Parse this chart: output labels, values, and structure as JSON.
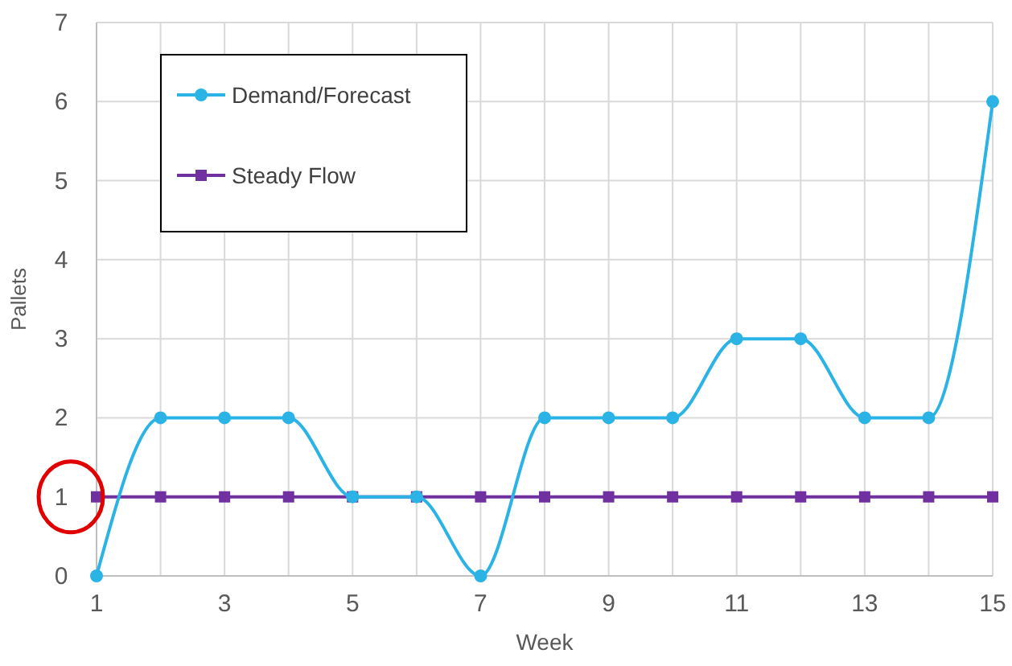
{
  "chart_data": {
    "type": "line",
    "xlabel": "Week",
    "ylabel": "Pallets",
    "x": [
      1,
      2,
      3,
      4,
      5,
      6,
      7,
      8,
      9,
      10,
      11,
      12,
      13,
      14,
      15
    ],
    "series": [
      {
        "name": "Demand/Forecast",
        "color": "#2bb3e6",
        "marker": "circle",
        "values": [
          0,
          2,
          2,
          2,
          1,
          1,
          0,
          2,
          2,
          2,
          3,
          3,
          2,
          2,
          6
        ]
      },
      {
        "name": "Steady Flow",
        "color": "#7030a0",
        "marker": "square",
        "values": [
          1,
          1,
          1,
          1,
          1,
          1,
          1,
          1,
          1,
          1,
          1,
          1,
          1,
          1,
          1
        ]
      }
    ],
    "xlim": [
      1,
      15
    ],
    "xticks": [
      1,
      {
        "value": 2,
        "label": null
      },
      3,
      {
        "value": 4,
        "label": null
      },
      5,
      {
        "value": 6,
        "label": null
      },
      7,
      {
        "value": 8,
        "label": null
      },
      9,
      {
        "value": 10,
        "label": null
      },
      11,
      {
        "value": 12,
        "label": null
      },
      13,
      {
        "value": 14,
        "label": null
      },
      15
    ],
    "ylim": [
      0,
      7
    ],
    "yticks": [
      0,
      1,
      2,
      3,
      4,
      5,
      6,
      7
    ],
    "grid": true,
    "legend": "top left",
    "line_style": "solid"
  }
}
